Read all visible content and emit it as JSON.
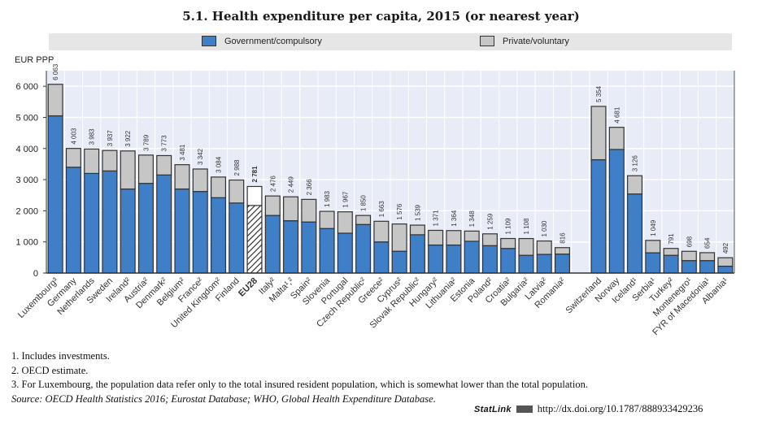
{
  "title": "5.1.  Health expenditure per capita, 2015 (or nearest year)",
  "legend": {
    "government": "Government/compulsory",
    "private": "Private/voluntary"
  },
  "colors": {
    "government": "#3f7fc7",
    "private": "#c6c6c6",
    "eu_top": "#ffffff",
    "plot_bg": "#e8ecf6",
    "grid": "#ffffff"
  },
  "unit_label": "EUR PPP",
  "notes": [
    "1.  Includes investments.",
    "2.  OECD estimate.",
    "3.  For Luxembourg, the population data refer only to the total insured resident population, which is somewhat lower than the total population."
  ],
  "source": {
    "prefix": "Source:  ",
    "text": "OECD Health Statistics 2016; Eurostat Database; WHO, Global Health Expenditure Database."
  },
  "statlink": {
    "label": "StatLink",
    "url": "http://dx.doi.org/10.1787/888933429236"
  },
  "chart_data": {
    "type": "bar",
    "stacked": true,
    "title": "5.1. Health expenditure per capita, 2015 (or nearest year)",
    "ylabel": "EUR PPP",
    "xlabel": "",
    "ylim": [
      0,
      6500
    ],
    "yticks": [
      0,
      1000,
      2000,
      3000,
      4000,
      5000,
      6000
    ],
    "ytick_labels": [
      "0",
      "1 000",
      "2 000",
      "3 000",
      "4 000",
      "5 000",
      "6 000"
    ],
    "grid": true,
    "legend_position": "top",
    "categories": [
      "Luxembourg³",
      "Germany",
      "Netherlands",
      "Sweden",
      "Ireland²",
      "Austria²",
      "Denmark²",
      "Belgium²",
      "France²",
      "United Kingdom²",
      "Finland",
      "EU28",
      "Italy²",
      "Malta¹,²",
      "Spain²",
      "Slovenia",
      "Portugal",
      "Czech Republic²",
      "Greece²",
      "Cyprus²",
      "Slovak Republic²",
      "Hungary²",
      "Lithuania²",
      "Estonia",
      "Poland²",
      "Croatia²",
      "Bulgaria²",
      "Latvia²",
      "Romania²",
      "",
      "Switzerland",
      "Norway",
      "Iceland¹",
      "Serbia¹",
      "Turkey²",
      "Montenegro¹",
      "FYR of Macedonia¹",
      "Albania¹"
    ],
    "highlight_category": "EU28",
    "series": [
      {
        "name": "Government/compulsory",
        "values": [
          5050,
          3400,
          3200,
          3280,
          2700,
          2880,
          3150,
          2700,
          2620,
          2420,
          2250,
          2170,
          1850,
          1680,
          1640,
          1430,
          1280,
          1560,
          1000,
          700,
          1230,
          900,
          900,
          1020,
          880,
          790,
          570,
          600,
          610,
          null,
          3640,
          3970,
          2540,
          650,
          570,
          400,
          400,
          220
        ]
      },
      {
        "name": "Private/voluntary",
        "values": [
          1013,
          603,
          783,
          657,
          1222,
          909,
          623,
          781,
          722,
          664,
          738,
          611,
          626,
          769,
          726,
          553,
          687,
          290,
          663,
          876,
          309,
          471,
          464,
          328,
          379,
          319,
          538,
          430,
          206,
          null,
          1714,
          711,
          586,
          399,
          221,
          298,
          254,
          272
        ]
      }
    ],
    "totals": [
      6063,
      4003,
      3983,
      3937,
      3922,
      3789,
      3773,
      3481,
      3342,
      3084,
      2988,
      2781,
      2476,
      2449,
      2366,
      1983,
      1967,
      1850,
      1663,
      1576,
      1539,
      1371,
      1364,
      1348,
      1259,
      1109,
      1108,
      1030,
      816,
      null,
      5354,
      4681,
      3126,
      1049,
      791,
      698,
      654,
      492
    ],
    "total_labels": [
      "6 063",
      "4 003",
      "3 983",
      "3 937",
      "3 922",
      "3 789",
      "3 773",
      "3 481",
      "3 342",
      "3 084",
      "2 988",
      "2 781",
      "2 476",
      "2 449",
      "2 366",
      "1 983",
      "1 967",
      "1 850",
      "1 663",
      "1 576",
      "1 539",
      "1 371",
      "1 364",
      "1 348",
      "1 259",
      "1 109",
      "1 108",
      "1 030",
      "816",
      "",
      "5 354",
      "4 681",
      "3 126",
      "1 049",
      "791",
      "698",
      "654",
      "492"
    ]
  }
}
